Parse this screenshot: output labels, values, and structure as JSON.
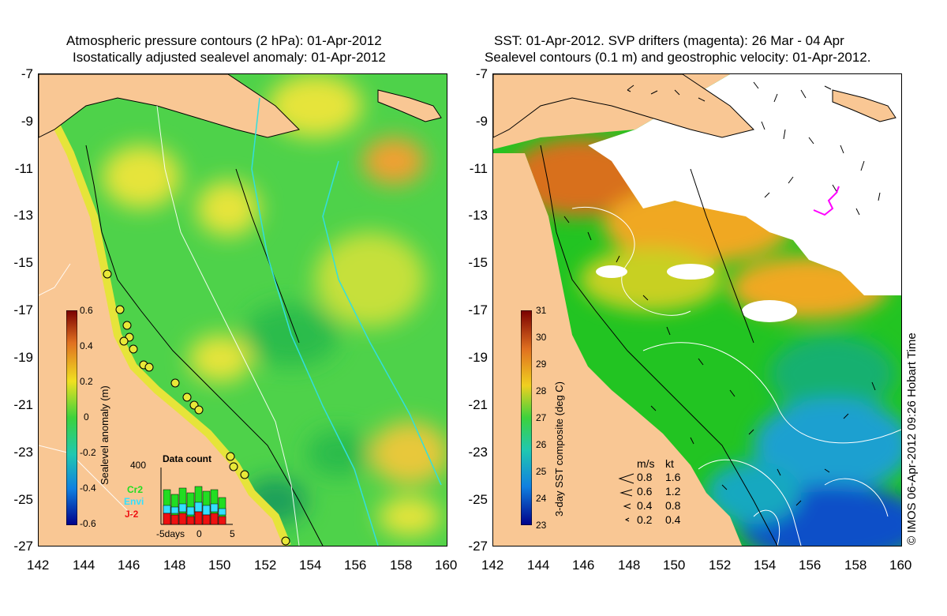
{
  "left_panel": {
    "title_line1": "Atmospheric pressure contours (2 hPa): 01-Apr-2012",
    "title_line2": "Isostatically adjusted sealevel anomaly: 01-Apr-2012",
    "colorbar": {
      "label": "Sealevel anomaly (m)",
      "ticks": [
        "0.6",
        "0.4",
        "0.2",
        "0",
        "-0.2",
        "-0.4",
        "-0.6"
      ]
    },
    "inset": {
      "title": "Data count",
      "ymax_label": "400",
      "x_labels": [
        "-5days",
        "0",
        "5"
      ],
      "missions": [
        {
          "name": "Cr2",
          "color": "#22dd22"
        },
        {
          "name": "Envi",
          "color": "#33e0ff"
        },
        {
          "name": "J-2",
          "color": "#ee1111"
        }
      ]
    }
  },
  "right_panel": {
    "title_line1": "SST: 01-Apr-2012. SVP drifters (magenta): 26 Mar - 04 Apr",
    "title_line2": "Sealevel contours (0.1 m) and geostrophic velocity: 01-Apr-2012.",
    "colorbar": {
      "label": "3-day SST composite (deg C)",
      "ticks": [
        "31",
        "30",
        "29",
        "28",
        "27",
        "26",
        "25",
        "24",
        "23"
      ]
    },
    "velocity_legend": {
      "header_ms": "m/s",
      "header_kt": "kt",
      "rows": [
        {
          "ms": "0.8",
          "kt": "1.6"
        },
        {
          "ms": "0.6",
          "kt": "1.2"
        },
        {
          "ms": "0.4",
          "kt": "0.8"
        },
        {
          "ms": "0.2",
          "kt": "0.4"
        }
      ]
    },
    "credit": "© IMOS 06-Apr-2012 09:26 Hobart Time"
  },
  "axes": {
    "y_labels": [
      "-7",
      "-9",
      "-11",
      "-13",
      "-15",
      "-17",
      "-19",
      "-21",
      "-23",
      "-25",
      "-27"
    ],
    "x_labels": [
      "142",
      "144",
      "146",
      "148",
      "150",
      "152",
      "154",
      "156",
      "158",
      "160"
    ]
  },
  "colors": {
    "land": "#f9c794",
    "anomaly_green": "#3dd23d",
    "anomaly_yellow": "#e8e838",
    "sst_orange": "#f0a020",
    "sst_green": "#1ec81e",
    "sst_blue": "#1e8ef0",
    "drifter": "#ff00ff"
  }
}
